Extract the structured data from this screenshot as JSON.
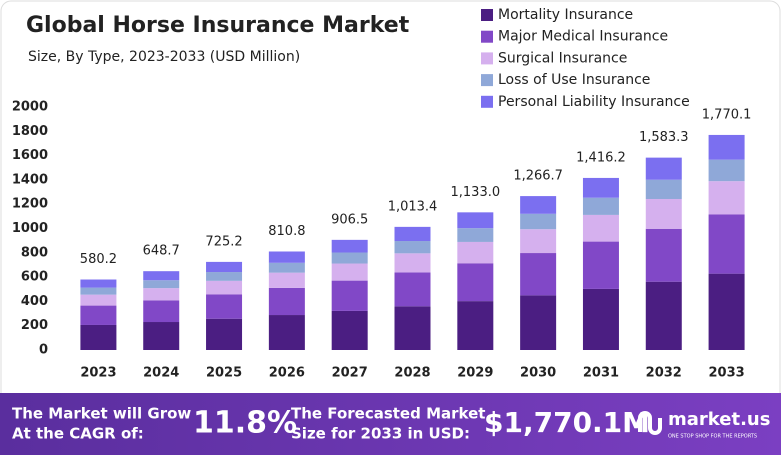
{
  "chart_data": {
    "type": "stacked-bar",
    "title": "Global Horse Insurance Market",
    "subtitle": "Size, By Type, 2023-2033 (USD Million)",
    "categories": [
      "2023",
      "2024",
      "2025",
      "2026",
      "2027",
      "2028",
      "2029",
      "2030",
      "2031",
      "2032",
      "2033"
    ],
    "series": [
      {
        "name": "Mortality Insurance",
        "color": "#4b1e82",
        "values": [
          206.0,
          230.3,
          257.4,
          287.8,
          321.8,
          359.8,
          402.2,
          449.7,
          502.8,
          562.1,
          628.4
        ]
      },
      {
        "name": "Major Medical Insurance",
        "color": "#8148c7",
        "values": [
          159.6,
          178.4,
          199.4,
          223.0,
          249.3,
          278.7,
          311.6,
          348.3,
          389.5,
          435.4,
          486.8
        ]
      },
      {
        "name": "Surgical Insurance",
        "color": "#d5b0ee",
        "values": [
          89.9,
          100.5,
          112.4,
          125.7,
          140.5,
          157.1,
          175.6,
          196.3,
          219.5,
          245.4,
          274.4
        ]
      },
      {
        "name": "Loss of Use Insurance",
        "color": "#8fa8d8",
        "values": [
          58.0,
          64.9,
          72.5,
          81.1,
          90.7,
          101.3,
          113.3,
          126.7,
          141.6,
          158.3,
          177.0
        ]
      },
      {
        "name": "Personal Liability Insurance",
        "color": "#7b6ff0",
        "values": [
          66.7,
          74.6,
          83.5,
          93.2,
          104.2,
          116.5,
          130.3,
          145.7,
          162.8,
          182.1,
          203.5
        ]
      }
    ],
    "totals": [
      580.2,
      648.7,
      725.2,
      810.8,
      906.5,
      1013.4,
      1133.0,
      1266.7,
      1416.2,
      1583.3,
      1770.1
    ],
    "total_labels": [
      "580.2",
      "648.7",
      "725.2",
      "810.8",
      "906.5",
      "1,013.4",
      "1,133.0",
      "1,266.7",
      "1,416.2",
      "1,583.3",
      "1,770.1"
    ],
    "ylim": [
      0,
      2000
    ],
    "yticks": [
      0,
      200,
      400,
      600,
      800,
      1000,
      1200,
      1400,
      1600,
      1800,
      2000
    ],
    "grid": false,
    "legend": "top-right"
  },
  "footer": {
    "cagr_text": [
      "The Market will Grow",
      "At the CAGR of:"
    ],
    "cagr": "11.8%",
    "forecast_text": [
      "The Forecasted Market",
      "Size for 2033 in USD:"
    ],
    "forecast": "$1,770.1M",
    "brand": "market.us",
    "tagline": "ONE STOP SHOP FOR THE REPORTS"
  }
}
